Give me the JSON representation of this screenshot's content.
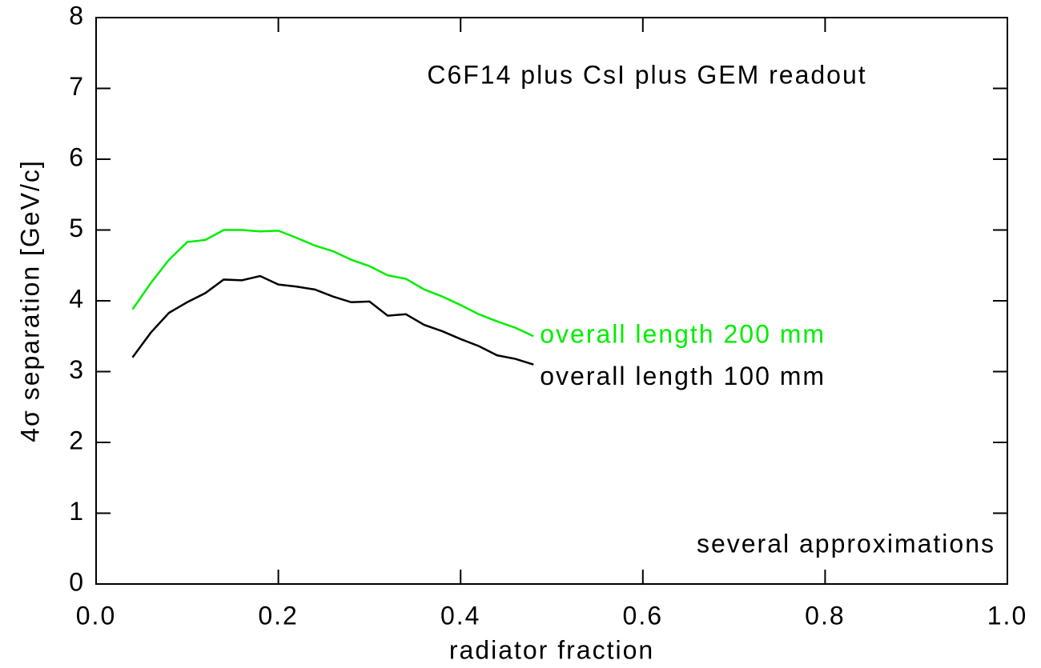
{
  "chart_data": {
    "type": "line",
    "annotations": [
      "C6F14 plus CsI plus GEM readout",
      "several approximations"
    ],
    "x_label": "radiator fraction",
    "y_label": "4σ separation [GeV/c]",
    "x": [
      0.04,
      0.06,
      0.08,
      0.1,
      0.12,
      0.14,
      0.16,
      0.18,
      0.2,
      0.22,
      0.24,
      0.26,
      0.28,
      0.3,
      0.32,
      0.34,
      0.36,
      0.38,
      0.4,
      0.42,
      0.44,
      0.46,
      0.48
    ],
    "series": [
      {
        "name": "overall length 200 mm",
        "color": "#00ee00",
        "values": [
          3.88,
          4.25,
          4.58,
          4.83,
          4.86,
          5.0,
          5.0,
          4.98,
          4.99,
          4.89,
          4.78,
          4.7,
          4.58,
          4.49,
          4.36,
          4.31,
          4.16,
          4.06,
          3.94,
          3.81,
          3.71,
          3.62,
          3.5
        ]
      },
      {
        "name": "overall length 100 mm",
        "color": "#000000",
        "values": [
          3.2,
          3.55,
          3.83,
          3.98,
          4.11,
          4.3,
          4.29,
          4.35,
          4.23,
          4.2,
          4.16,
          4.06,
          3.98,
          3.99,
          3.79,
          3.81,
          3.66,
          3.57,
          3.46,
          3.36,
          3.23,
          3.18,
          3.1
        ]
      }
    ],
    "xlim": [
      0,
      1
    ],
    "xticks": [
      {
        "value": 0,
        "label": "0.0"
      },
      {
        "value": 0.2,
        "label": "0.2"
      },
      {
        "value": 0.4,
        "label": "0.4"
      },
      {
        "value": 0.6,
        "label": "0.6"
      },
      {
        "value": 0.8,
        "label": "0.8"
      },
      {
        "value": 1,
        "label": "1.0"
      }
    ],
    "ylim": [
      0,
      8
    ],
    "yticks": [
      0,
      1,
      2,
      3,
      4,
      5,
      6,
      7,
      8
    ],
    "grid": false
  }
}
